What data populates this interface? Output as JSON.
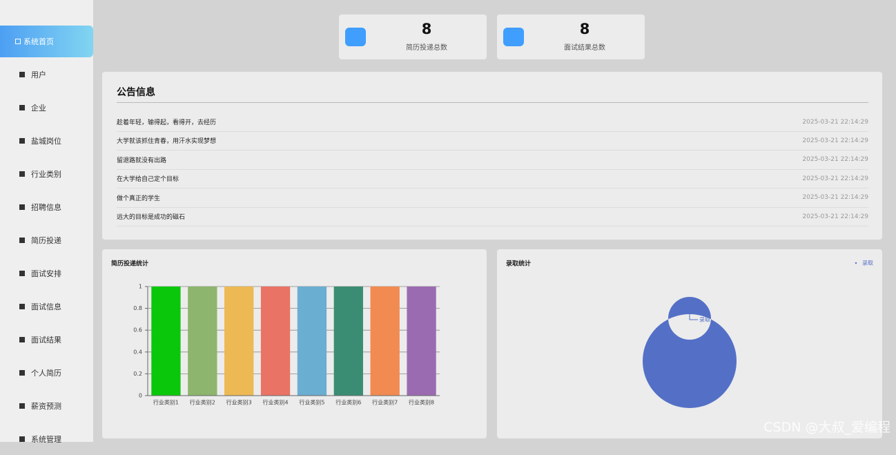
{
  "sidebar": {
    "active": 0,
    "items": [
      "系统首页",
      "用户",
      "企业",
      "盐城岗位",
      "行业类别",
      "招聘信息",
      "简历投递",
      "面试安排",
      "面试信息",
      "面试结果",
      "个人简历",
      "薪资预测",
      "系统管理"
    ]
  },
  "stats": [
    {
      "value": 8,
      "label": "简历投递总数"
    },
    {
      "value": 8,
      "label": "面试结果总数"
    }
  ],
  "notice": {
    "title": "公告信息",
    "rows": [
      {
        "title": "趁着年轻，输得起，看得开，去经历",
        "date": "2025-03-21 22:14:29"
      },
      {
        "title": "大学就该抓住青春，用汗水实现梦想",
        "date": "2025-03-21 22:14:29"
      },
      {
        "title": "留退路就没有出路",
        "date": "2025-03-21 22:14:29"
      },
      {
        "title": "在大学给自己定个目标",
        "date": "2025-03-21 22:14:29"
      },
      {
        "title": "做个真正的学生",
        "date": "2025-03-21 22:14:29"
      },
      {
        "title": "远大的目标是成功的磁石",
        "date": "2025-03-21 22:14:29"
      }
    ]
  },
  "watermark": "CSDN @大叔_爱编程",
  "chart_data": [
    {
      "type": "bar",
      "title": "简历投递统计",
      "categories": [
        "行业类别1",
        "行业类别2",
        "行业类别3",
        "行业类别4",
        "行业类别5",
        "行业类别6",
        "行业类别7",
        "行业类别8"
      ],
      "values": [
        1,
        1,
        1,
        1,
        1,
        1,
        1,
        1
      ],
      "colors": [
        "#0bc70b",
        "#8db56d",
        "#edb955",
        "#e97365",
        "#6aaed1",
        "#3a8d72",
        "#f28b51",
        "#9b6bb1"
      ],
      "ylim": [
        0,
        1
      ],
      "yticks": [
        0,
        0.2,
        0.4,
        0.6,
        0.8,
        1
      ],
      "grid": true
    },
    {
      "type": "pie",
      "title": "录取统计",
      "categories": [
        "录取"
      ],
      "values": [
        1
      ],
      "colors": [
        "#5470c6"
      ],
      "donut": true,
      "legend": "top-right"
    }
  ]
}
